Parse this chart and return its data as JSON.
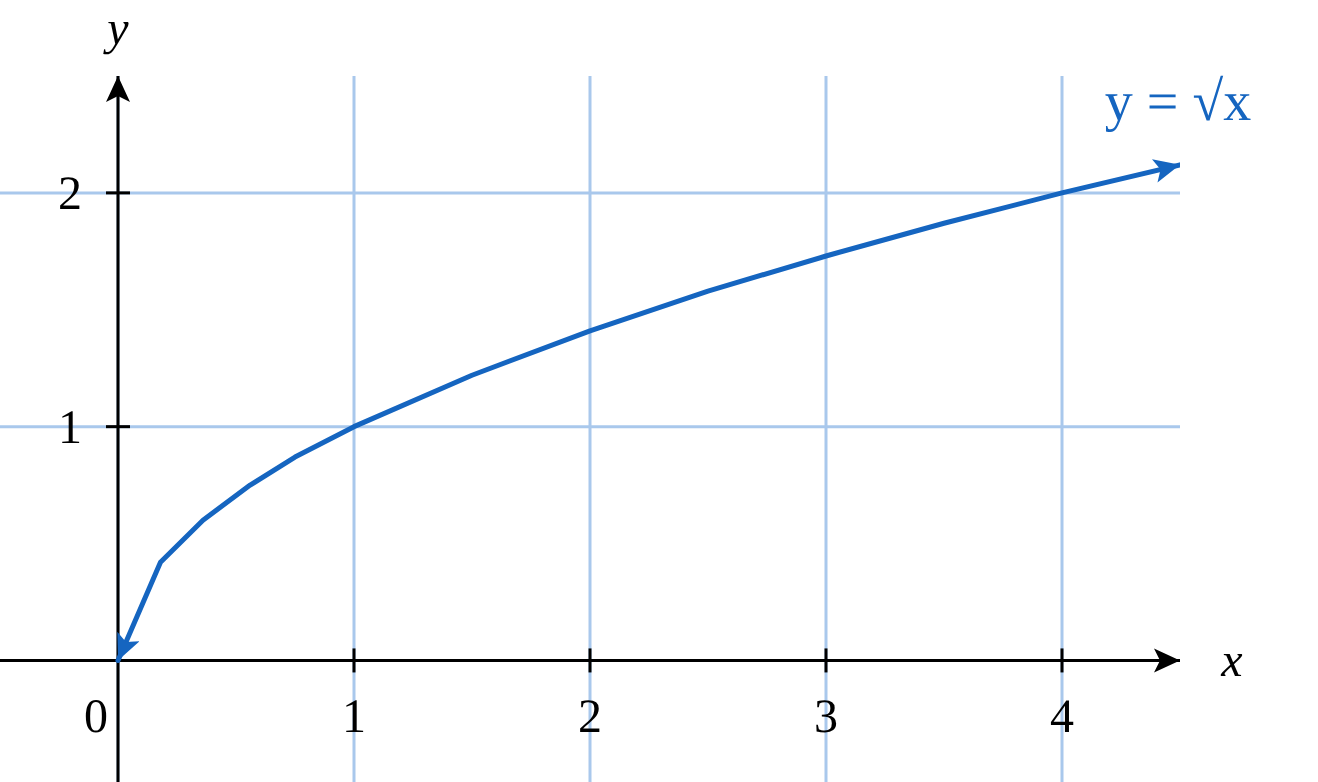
{
  "chart_data": {
    "type": "line",
    "xlabel": "x",
    "ylabel": "y",
    "x": [
      0,
      0.18,
      0.36,
      0.56,
      0.75,
      1,
      1.5,
      2,
      2.5,
      3,
      3.5,
      4,
      4.5
    ],
    "series": [
      {
        "color": "#1565c0",
        "values": [
          0,
          0.42,
          0.6,
          0.75,
          0.87,
          1,
          1.22,
          1.41,
          1.58,
          1.73,
          1.87,
          2,
          2.12
        ]
      }
    ],
    "xlim": [
      -0.5,
      4.5
    ],
    "ylim": [
      -0.52,
      2.5
    ],
    "xticks": [
      0,
      1,
      2,
      3,
      4
    ],
    "yticks": [
      1,
      2
    ],
    "grid": true,
    "marker": "none",
    "line_style": "solid",
    "annotations": [
      "y = √x"
    ]
  }
}
